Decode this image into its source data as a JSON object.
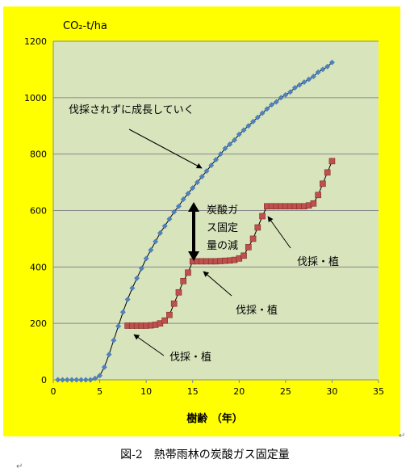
{
  "chart_data": {
    "type": "scatter",
    "unit_label": "CO₂-t/ha",
    "xlabel": "樹齢 （年）",
    "ylabel": "",
    "xlim": [
      0,
      35
    ],
    "ylim": [
      0,
      1200
    ],
    "x_ticks": [
      0,
      5,
      10,
      15,
      20,
      25,
      30,
      35
    ],
    "y_ticks": [
      0,
      200,
      400,
      600,
      800,
      1000,
      1200
    ],
    "grid": "horizontal",
    "colors": {
      "frame_bg": "#ffff00",
      "plot_bg": "#d8e4bc",
      "series1": "#4f81bd",
      "series2": "#c0504d"
    },
    "series": [
      {
        "marker": "diamond",
        "x": [
          0.5,
          1,
          1.5,
          2,
          2.5,
          3,
          3.5,
          4,
          4.5,
          5,
          5.5,
          6,
          6.5,
          7,
          7.5,
          8,
          8.5,
          9,
          9.5,
          10,
          10.5,
          11,
          11.5,
          12,
          12.5,
          13,
          13.5,
          14,
          14.5,
          15,
          15.5,
          16,
          16.5,
          17,
          17.5,
          18,
          18.5,
          19,
          19.5,
          20,
          20.5,
          21,
          21.5,
          22,
          22.5,
          23,
          23.5,
          24,
          24.5,
          25,
          25.5,
          26,
          26.5,
          27,
          27.5,
          28,
          28.5,
          29,
          29.5,
          30
        ],
        "y": [
          0,
          0,
          0,
          0,
          0,
          0,
          0,
          0,
          5,
          15,
          45,
          90,
          140,
          190,
          240,
          285,
          325,
          360,
          395,
          430,
          460,
          490,
          520,
          545,
          570,
          595,
          615,
          640,
          660,
          680,
          700,
          720,
          740,
          760,
          780,
          800,
          820,
          835,
          850,
          870,
          885,
          900,
          915,
          930,
          945,
          960,
          975,
          985,
          1000,
          1010,
          1020,
          1035,
          1045,
          1055,
          1065,
          1075,
          1090,
          1100,
          1110,
          1125
        ]
      },
      {
        "marker": "square",
        "x": [
          8,
          8.5,
          9,
          9.5,
          10,
          10.5,
          11,
          11.5,
          12,
          12.5,
          13,
          13.5,
          14,
          14.5,
          15,
          15.5,
          16,
          16.5,
          17,
          17.5,
          18,
          18.5,
          19,
          19.5,
          20,
          20.5,
          21,
          21.5,
          22,
          22.5,
          23,
          23.5,
          24,
          24.5,
          25,
          25.5,
          26,
          26.5,
          27,
          27.5,
          28,
          28.5,
          29,
          29.5,
          30
        ],
        "y": [
          192,
          192,
          192,
          192,
          192,
          193,
          195,
          200,
          210,
          230,
          270,
          310,
          350,
          380,
          420,
          420,
          420,
          420,
          420,
          420,
          421,
          422,
          423,
          425,
          430,
          440,
          470,
          500,
          540,
          580,
          615,
          615,
          615,
          615,
          615,
          615,
          615,
          615,
          615,
          618,
          625,
          655,
          695,
          735,
          775
        ]
      }
    ],
    "annotations": [
      {
        "text": "伐採されずに成長していく"
      },
      {
        "text": "炭酸ガス固定量の減"
      },
      {
        "text": "伐採・植"
      },
      {
        "text": "伐採・植"
      },
      {
        "text": "伐採・植"
      }
    ]
  },
  "caption": "図-2　熱帯雨林の炭酸ガス固定量"
}
